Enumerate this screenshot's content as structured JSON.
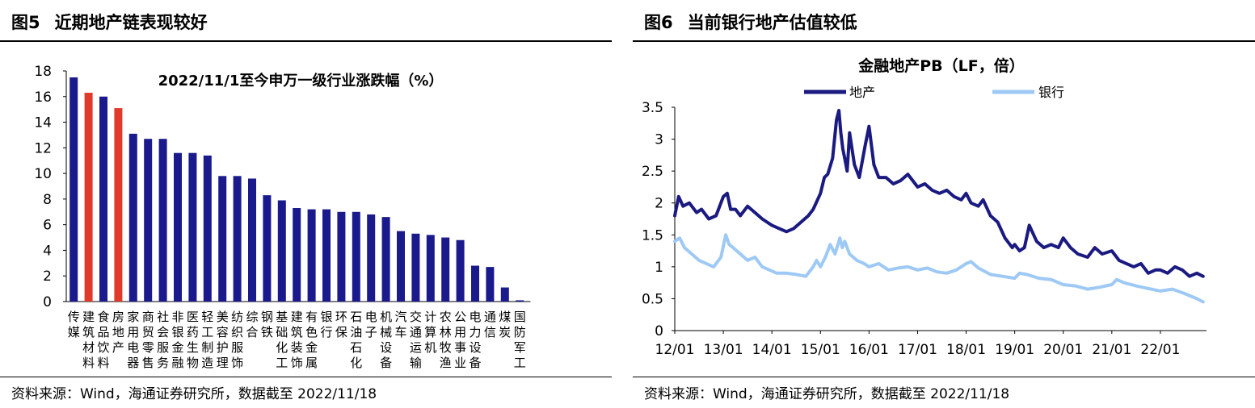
{
  "left": {
    "figure_number": "图5",
    "figure_title": "近期地产链表现较好",
    "source": "资料来源：Wind，海通证券研究所，数据截至 2022/11/18",
    "colors": {
      "default": "#1a1a8c",
      "highlight": "#e03a2a"
    }
  },
  "right": {
    "figure_number": "图6",
    "figure_title": "当前银行地产估值较低",
    "source": "资料来源：Wind，海通证券研究所，数据截至 2022/11/18",
    "colors": {
      "地产": "#1a1a80",
      "银行": "#9ec9f5"
    }
  },
  "chart_data": [
    {
      "type": "bar",
      "title": "2022/11/1至今申万一级行业涨跌幅（%）",
      "xlabel": "",
      "ylabel": "",
      "ylim": [
        0,
        18
      ],
      "yticks": [
        0,
        2,
        4,
        6,
        8,
        10,
        12,
        14,
        16,
        18
      ],
      "grid": false,
      "categories": [
        "传媒",
        "建筑材料",
        "食品饮料",
        "房地产",
        "家用电器",
        "商贸零售",
        "社会服务",
        "非银金融",
        "医药生物",
        "轻工制造",
        "美容护理",
        "纺织服饰",
        "综合",
        "钢铁",
        "基础化工",
        "建筑装饰",
        "有色金属",
        "银行",
        "环保",
        "石油石化",
        "电子",
        "机械设备",
        "汽车",
        "交通运输",
        "计算机",
        "农林牧渔",
        "公用事业",
        "电力设备",
        "通信",
        "煤炭",
        "国防军工"
      ],
      "category_label_lines": [
        [
          "传",
          "媒"
        ],
        [
          "建",
          "筑",
          "材",
          "料"
        ],
        [
          "食",
          "品",
          "饮",
          "料"
        ],
        [
          "房",
          "地",
          "产"
        ],
        [
          "家",
          "用",
          "电",
          "器"
        ],
        [
          "商",
          "贸",
          "零",
          "售"
        ],
        [
          "社",
          "会",
          "服",
          "务"
        ],
        [
          "非",
          "银",
          "金",
          "融"
        ],
        [
          "医",
          "药",
          "生",
          "物"
        ],
        [
          "轻",
          "工",
          "制",
          "造"
        ],
        [
          "美",
          "容",
          "护",
          "理"
        ],
        [
          "纺",
          "织",
          "服",
          "饰"
        ],
        [
          "综",
          "合"
        ],
        [
          "钢",
          "铁"
        ],
        [
          "基",
          "础",
          "化",
          "工"
        ],
        [
          "建",
          "筑",
          "装",
          "饰"
        ],
        [
          "有",
          "色",
          "金",
          "属"
        ],
        [
          "银",
          "行"
        ],
        [
          "环",
          "保"
        ],
        [
          "石",
          "油",
          "石",
          "化"
        ],
        [
          "电",
          "子"
        ],
        [
          "机",
          "械",
          "设",
          "备"
        ],
        [
          "汽",
          "车"
        ],
        [
          "交",
          "通",
          "运",
          "输"
        ],
        [
          "计",
          "算",
          "机"
        ],
        [
          "农",
          "林",
          "牧",
          "渔"
        ],
        [
          "公",
          "用",
          "事",
          "业"
        ],
        [
          "电",
          "力",
          "设",
          "备"
        ],
        [
          "通",
          "信"
        ],
        [
          "煤",
          "炭"
        ],
        [
          "国",
          "防",
          "军",
          "工"
        ]
      ],
      "values": [
        17.5,
        16.3,
        16.0,
        15.1,
        13.1,
        12.7,
        12.7,
        11.6,
        11.6,
        11.4,
        9.8,
        9.8,
        9.6,
        8.3,
        7.9,
        7.3,
        7.2,
        7.2,
        7.0,
        7.0,
        6.8,
        6.6,
        5.5,
        5.3,
        5.2,
        5.0,
        4.8,
        2.8,
        2.7,
        1.1,
        0.1
      ],
      "highlight": [
        "建筑材料",
        "房地产"
      ]
    },
    {
      "type": "line",
      "title": "金融地产PB（LF，倍）",
      "xlabel": "",
      "ylabel": "",
      "ylim": [
        0,
        3.5
      ],
      "yticks": [
        "0",
        "0.5",
        "1",
        "1.5",
        "2",
        "2.5",
        "3",
        "3.5"
      ],
      "xticks": [
        "12/01",
        "13/01",
        "14/01",
        "15/01",
        "16/01",
        "17/01",
        "18/01",
        "19/01",
        "20/01",
        "21/01",
        "22/01"
      ],
      "x_start_year": 2012,
      "grid": false,
      "legend": "top",
      "series": [
        {
          "name": "地产",
          "x": [
            2012.0,
            2012.08,
            2012.17,
            2012.3,
            2012.45,
            2012.55,
            2012.7,
            2012.85,
            2013.0,
            2013.08,
            2013.15,
            2013.25,
            2013.35,
            2013.5,
            2013.65,
            2013.8,
            2013.9,
            2014.0,
            2014.15,
            2014.3,
            2014.45,
            2014.6,
            2014.75,
            2014.85,
            2015.0,
            2015.08,
            2015.15,
            2015.25,
            2015.33,
            2015.38,
            2015.42,
            2015.46,
            2015.5,
            2015.55,
            2015.6,
            2015.7,
            2015.8,
            2015.92,
            2016.0,
            2016.1,
            2016.2,
            2016.35,
            2016.5,
            2016.65,
            2016.8,
            2017.0,
            2017.15,
            2017.3,
            2017.45,
            2017.6,
            2017.75,
            2017.9,
            2018.0,
            2018.1,
            2018.25,
            2018.35,
            2018.5,
            2018.65,
            2018.8,
            2018.95,
            2019.0,
            2019.1,
            2019.2,
            2019.3,
            2019.45,
            2019.6,
            2019.75,
            2019.9,
            2020.0,
            2020.15,
            2020.3,
            2020.5,
            2020.65,
            2020.8,
            2021.0,
            2021.15,
            2021.3,
            2021.45,
            2021.6,
            2021.75,
            2021.9,
            2022.0,
            2022.15,
            2022.3,
            2022.45,
            2022.6,
            2022.75,
            2022.88
          ],
          "values": [
            1.8,
            2.1,
            1.95,
            2.0,
            1.85,
            1.9,
            1.75,
            1.8,
            2.1,
            2.15,
            1.9,
            1.9,
            1.8,
            1.95,
            1.85,
            1.75,
            1.7,
            1.65,
            1.6,
            1.55,
            1.6,
            1.7,
            1.8,
            1.9,
            2.15,
            2.4,
            2.45,
            2.7,
            3.3,
            3.45,
            3.1,
            2.85,
            2.7,
            2.5,
            3.1,
            2.6,
            2.4,
            2.9,
            3.2,
            2.6,
            2.4,
            2.4,
            2.3,
            2.35,
            2.45,
            2.25,
            2.3,
            2.2,
            2.15,
            2.2,
            2.1,
            2.05,
            2.15,
            2.0,
            1.95,
            2.05,
            1.8,
            1.7,
            1.45,
            1.3,
            1.35,
            1.25,
            1.3,
            1.65,
            1.4,
            1.3,
            1.35,
            1.3,
            1.45,
            1.3,
            1.2,
            1.15,
            1.3,
            1.2,
            1.25,
            1.1,
            1.05,
            1.0,
            1.05,
            0.9,
            0.95,
            0.95,
            0.9,
            1.0,
            0.95,
            0.85,
            0.9,
            0.85
          ]
        },
        {
          "name": "银行",
          "x": [
            2012.0,
            2012.1,
            2012.2,
            2012.35,
            2012.5,
            2012.65,
            2012.8,
            2012.95,
            2013.05,
            2013.12,
            2013.2,
            2013.35,
            2013.5,
            2013.65,
            2013.8,
            2013.95,
            2014.1,
            2014.3,
            2014.5,
            2014.7,
            2014.85,
            2014.92,
            2015.0,
            2015.1,
            2015.2,
            2015.3,
            2015.4,
            2015.45,
            2015.5,
            2015.6,
            2015.75,
            2015.9,
            2016.0,
            2016.2,
            2016.4,
            2016.6,
            2016.8,
            2017.0,
            2017.2,
            2017.4,
            2017.6,
            2017.8,
            2018.0,
            2018.1,
            2018.25,
            2018.5,
            2018.75,
            2019.0,
            2019.1,
            2019.25,
            2019.5,
            2019.75,
            2020.0,
            2020.25,
            2020.5,
            2020.75,
            2021.0,
            2021.1,
            2021.25,
            2021.5,
            2021.75,
            2022.0,
            2022.25,
            2022.5,
            2022.75,
            2022.88
          ],
          "values": [
            1.4,
            1.45,
            1.3,
            1.2,
            1.1,
            1.05,
            1.0,
            1.15,
            1.5,
            1.35,
            1.3,
            1.2,
            1.1,
            1.15,
            1.0,
            0.95,
            0.9,
            0.9,
            0.88,
            0.85,
            1.0,
            1.1,
            1.0,
            1.15,
            1.35,
            1.2,
            1.45,
            1.3,
            1.4,
            1.2,
            1.1,
            1.05,
            1.0,
            1.05,
            0.95,
            0.98,
            1.0,
            0.95,
            0.98,
            0.92,
            0.9,
            0.95,
            1.05,
            1.08,
            0.98,
            0.88,
            0.85,
            0.82,
            0.9,
            0.88,
            0.82,
            0.8,
            0.72,
            0.7,
            0.65,
            0.68,
            0.72,
            0.8,
            0.75,
            0.7,
            0.66,
            0.62,
            0.65,
            0.58,
            0.5,
            0.45
          ]
        }
      ]
    }
  ]
}
